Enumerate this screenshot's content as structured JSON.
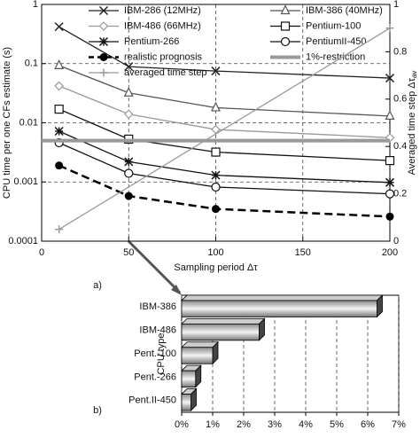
{
  "chart_data": [
    {
      "type": "line",
      "label": "a)",
      "xlabel": "Sampling period Δτ",
      "ylabel": "CPU time per one CFs estimate (s)",
      "y2label": "Averaged time step Δτ",
      "y2label_sub": "av",
      "xlim": [
        0,
        200
      ],
      "xticks": [
        0,
        50,
        100,
        150,
        200
      ],
      "ylim": [
        0.0001,
        1
      ],
      "yticks": [
        0.0001,
        0.001,
        0.01,
        0.1,
        1
      ],
      "ylog": true,
      "y2lim": [
        0,
        1
      ],
      "y2ticks": [
        0,
        0.2,
        0.4,
        0.6,
        0.8,
        1
      ],
      "grid": true,
      "series": [
        {
          "name": "IBM-286 (12MHz)",
          "color": "#222222",
          "marker": "x",
          "x": [
            10,
            50,
            100,
            200
          ],
          "values": [
            0.42,
            0.089,
            0.075,
            0.057
          ]
        },
        {
          "name": "IBM-386 (40MHz)",
          "color": "#555555",
          "marker": "triangle",
          "x": [
            10,
            50,
            100,
            200
          ],
          "values": [
            0.093,
            0.032,
            0.018,
            0.013
          ]
        },
        {
          "name": "IBM-486 (66MHz)",
          "color": "#999999",
          "marker": "diamond",
          "x": [
            10,
            50,
            100,
            200
          ],
          "values": [
            0.042,
            0.014,
            0.0077,
            0.0056
          ]
        },
        {
          "name": "Pentium-100",
          "color": "#111111",
          "marker": "square",
          "x": [
            10,
            50,
            100,
            200
          ],
          "values": [
            0.017,
            0.0053,
            0.0032,
            0.0023
          ]
        },
        {
          "name": "Pentium-266",
          "color": "#111111",
          "marker": "star",
          "x": [
            10,
            50,
            100,
            200
          ],
          "values": [
            0.0072,
            0.0022,
            0.0013,
            0.00098
          ]
        },
        {
          "name": "PentiumII-450",
          "color": "#111111",
          "marker": "circle",
          "x": [
            10,
            50,
            100,
            200
          ],
          "values": [
            0.0046,
            0.0014,
            0.00082,
            0.00063
          ]
        },
        {
          "name": "realistic prognosis",
          "color": "#000000",
          "marker": "dot",
          "dash": true,
          "width": 2.5,
          "x": [
            10,
            50,
            100,
            200
          ],
          "values": [
            0.0019,
            0.00058,
            0.00035,
            0.00026
          ]
        },
        {
          "name": "1%-restriction",
          "color": "#999999",
          "marker": "none",
          "width": 4,
          "x": [
            0,
            200
          ],
          "values": [
            0.005,
            0.005
          ]
        },
        {
          "name": "averaged time step",
          "color": "#999999",
          "marker": "plus",
          "axis": "y2",
          "x": [
            10,
            200
          ],
          "values": [
            0.05,
            0.9
          ]
        }
      ]
    },
    {
      "type": "hbar3d",
      "label": "b)",
      "ylabel": "CPU type",
      "categories": [
        "IBM-386",
        "IBM-486",
        "Pent.-100",
        "Pent.-266",
        "Pent.II-450"
      ],
      "values": [
        6.3,
        2.5,
        1.0,
        0.45,
        0.3
      ],
      "xlim": [
        0,
        7
      ],
      "xticks": [
        {
          "value": 0,
          "label": "0%"
        },
        {
          "value": 1,
          "label": "1%"
        },
        {
          "value": 2,
          "label": "2%"
        },
        {
          "value": 3,
          "label": "3%"
        },
        {
          "value": 4,
          "label": "4%"
        },
        {
          "value": 5,
          "label": "5%"
        },
        {
          "value": 6,
          "label": "6%"
        },
        {
          "value": 7,
          "label": "7%"
        }
      ],
      "grid": true,
      "color": "#bbbbbb"
    }
  ]
}
